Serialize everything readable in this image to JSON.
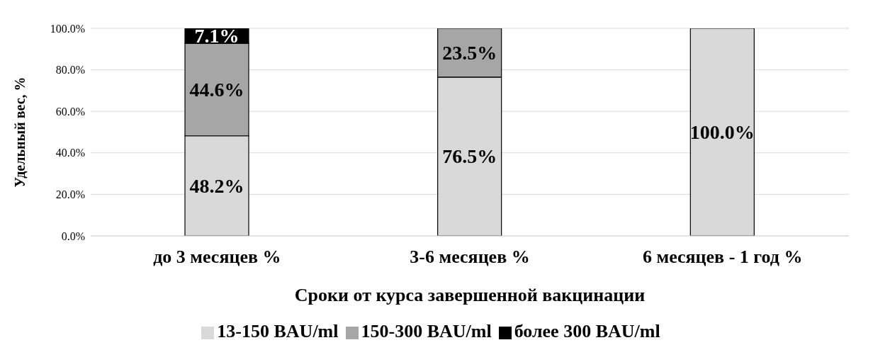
{
  "chart_data": {
    "type": "bar",
    "stacked": true,
    "xlabel": "Сроки от курса завершенной вакцинации",
    "ylabel": "Удельный вес, %",
    "categories": [
      "до 3 месяцев %",
      "3-6 месяцев %",
      "6 месяцев - 1 год %"
    ],
    "series": [
      {
        "name": "13-150 BAU/ml",
        "color": "#d9d9d9",
        "values": [
          48.2,
          76.5,
          100.0
        ],
        "value_labels": [
          "48.2%",
          "76.5%",
          "100.0%"
        ]
      },
      {
        "name": "150-300 BAU/ml",
        "color": "#a6a6a6",
        "values": [
          44.6,
          23.5,
          null
        ],
        "value_labels": [
          "44.6%",
          "23.5%",
          null
        ]
      },
      {
        "name": "более 300 BAU/ml",
        "color": "#000000",
        "values": [
          7.1,
          null,
          null
        ],
        "value_labels": [
          "7.1%",
          null,
          null
        ]
      }
    ],
    "ylim": [
      0,
      100
    ],
    "yticks": [
      {
        "value": 0,
        "label": "0.0%"
      },
      {
        "value": 20,
        "label": "20.0%"
      },
      {
        "value": 40,
        "label": "40.0%"
      },
      {
        "value": 60,
        "label": "60.0%"
      },
      {
        "value": 80,
        "label": "80.0%"
      },
      {
        "value": 100,
        "label": "100.0%"
      }
    ],
    "grid": "y",
    "legend": "bottom"
  }
}
